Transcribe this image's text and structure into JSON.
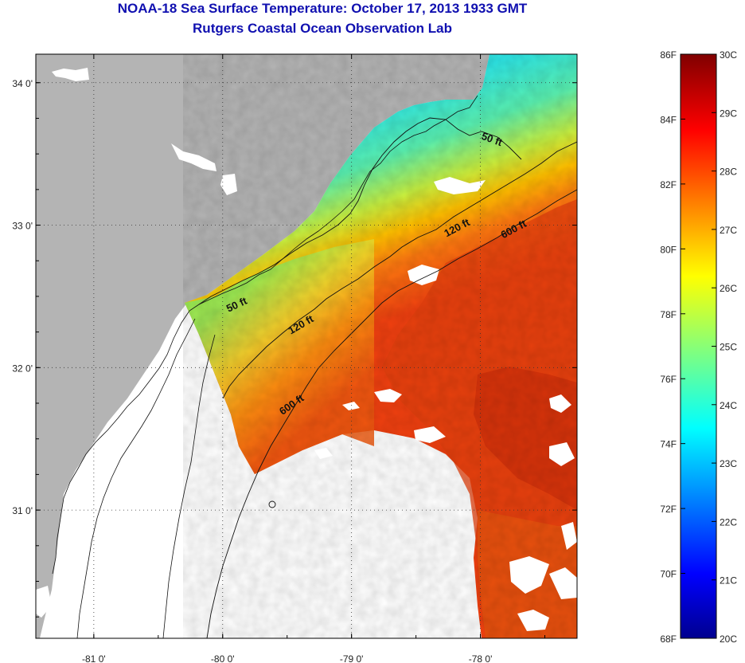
{
  "header": {
    "title": "NOAA-18 Sea Surface Temperature:  October 17, 2013 1933 GMT",
    "subtitle": "Rutgers Coastal Ocean Observation Lab"
  },
  "axes": {
    "lon_labels": [
      "-81 0'",
      "-80 0'",
      "-79 0'",
      "-78 0'"
    ],
    "lat_labels": [
      "34 0'",
      "33 0'",
      "32 0'",
      "31 0'"
    ],
    "lon_range": [
      -81.45,
      -77.25
    ],
    "lat_range": [
      30.1,
      34.2
    ]
  },
  "contours": {
    "labels": [
      {
        "text": "50 ft",
        "lon": -77.92,
        "lat": 33.58
      },
      {
        "text": "120 ft",
        "lon": -78.17,
        "lat": 32.96
      },
      {
        "text": "600 ft",
        "lon": -77.73,
        "lat": 32.95
      },
      {
        "text": "50 ft",
        "lon": -79.88,
        "lat": 32.42
      },
      {
        "text": "120 ft",
        "lon": -79.38,
        "lat": 32.28
      },
      {
        "text": "600 ft",
        "lon": -79.45,
        "lat": 31.72
      }
    ]
  },
  "colorbar": {
    "fahrenheit": [
      "86F",
      "84F",
      "82F",
      "80F",
      "78F",
      "76F",
      "74F",
      "72F",
      "70F",
      "68F"
    ],
    "celsius": [
      "30C",
      "29C",
      "28C",
      "27C",
      "26C",
      "25C",
      "24C",
      "23C",
      "22C",
      "21C",
      "20C"
    ],
    "range_c": [
      20,
      30
    ]
  },
  "colors": {
    "land": "#b4b4b4",
    "nodata": "#ffffff",
    "title": "#1010b0"
  }
}
